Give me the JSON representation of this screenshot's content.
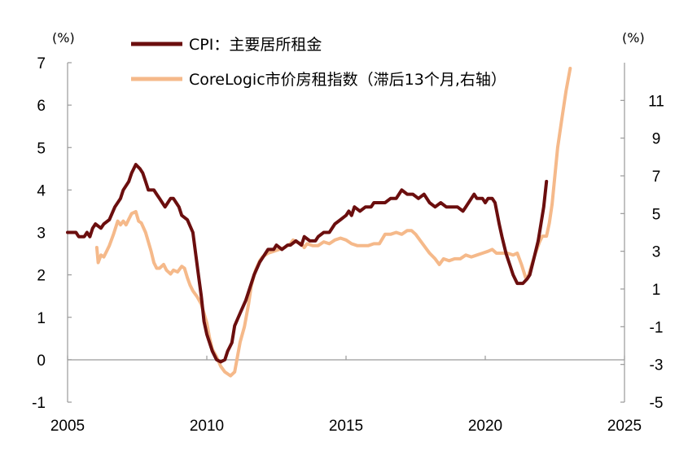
{
  "chart_data": {
    "type": "line",
    "left_axis": {
      "unit": "(%)",
      "ylim": [
        -1,
        7
      ],
      "ticks": [
        "-1",
        "0",
        "1",
        "2",
        "3",
        "4",
        "5",
        "6",
        "7"
      ]
    },
    "right_axis": {
      "unit": "(%)",
      "ylim": [
        -5,
        13
      ],
      "ticks": [
        "-5",
        "-3",
        "-1",
        "1",
        "3",
        "5",
        "7",
        "9",
        "11"
      ]
    },
    "x_axis": {
      "xlim": [
        2005,
        2025
      ],
      "ticks": [
        "2005",
        "2010",
        "2015",
        "2020",
        "2025"
      ]
    },
    "legend": {
      "placement": "top-center"
    },
    "series": [
      {
        "name": "CPI：主要居所租金",
        "axis": "left",
        "color": "#6b0e0e",
        "points": [
          [
            2005.0,
            3.0
          ],
          [
            2005.3,
            3.0
          ],
          [
            2005.4,
            2.9
          ],
          [
            2005.6,
            2.9
          ],
          [
            2005.7,
            3.0
          ],
          [
            2005.8,
            2.9
          ],
          [
            2005.9,
            3.1
          ],
          [
            2006.0,
            3.2
          ],
          [
            2006.2,
            3.1
          ],
          [
            2006.3,
            3.2
          ],
          [
            2006.5,
            3.3
          ],
          [
            2006.7,
            3.6
          ],
          [
            2006.9,
            3.8
          ],
          [
            2007.0,
            4.0
          ],
          [
            2007.2,
            4.2
          ],
          [
            2007.3,
            4.4
          ],
          [
            2007.45,
            4.6
          ],
          [
            2007.6,
            4.5
          ],
          [
            2007.7,
            4.4
          ],
          [
            2007.8,
            4.2
          ],
          [
            2007.9,
            4.0
          ],
          [
            2008.1,
            4.0
          ],
          [
            2008.2,
            3.9
          ],
          [
            2008.3,
            3.8
          ],
          [
            2008.4,
            3.7
          ],
          [
            2008.5,
            3.6
          ],
          [
            2008.6,
            3.7
          ],
          [
            2008.7,
            3.8
          ],
          [
            2008.8,
            3.8
          ],
          [
            2008.9,
            3.7
          ],
          [
            2009.0,
            3.6
          ],
          [
            2009.1,
            3.4
          ],
          [
            2009.3,
            3.3
          ],
          [
            2009.5,
            3.0
          ],
          [
            2009.6,
            2.5
          ],
          [
            2009.7,
            2.0
          ],
          [
            2009.8,
            1.5
          ],
          [
            2009.9,
            0.9
          ],
          [
            2010.0,
            0.6
          ],
          [
            2010.2,
            0.2
          ],
          [
            2010.35,
            0.0
          ],
          [
            2010.5,
            -0.05
          ],
          [
            2010.65,
            0.0
          ],
          [
            2010.75,
            0.2
          ],
          [
            2010.9,
            0.4
          ],
          [
            2011.0,
            0.8
          ],
          [
            2011.2,
            1.1
          ],
          [
            2011.4,
            1.4
          ],
          [
            2011.5,
            1.6
          ],
          [
            2011.7,
            2.0
          ],
          [
            2011.9,
            2.3
          ],
          [
            2012.0,
            2.4
          ],
          [
            2012.2,
            2.6
          ],
          [
            2012.4,
            2.6
          ],
          [
            2012.5,
            2.7
          ],
          [
            2012.7,
            2.6
          ],
          [
            2012.9,
            2.7
          ],
          [
            2013.0,
            2.7
          ],
          [
            2013.2,
            2.8
          ],
          [
            2013.4,
            2.7
          ],
          [
            2013.5,
            2.9
          ],
          [
            2013.7,
            2.8
          ],
          [
            2013.9,
            2.8
          ],
          [
            2014.0,
            2.9
          ],
          [
            2014.2,
            3.0
          ],
          [
            2014.4,
            3.0
          ],
          [
            2014.6,
            3.2
          ],
          [
            2014.8,
            3.3
          ],
          [
            2015.0,
            3.4
          ],
          [
            2015.1,
            3.5
          ],
          [
            2015.2,
            3.4
          ],
          [
            2015.3,
            3.6
          ],
          [
            2015.5,
            3.5
          ],
          [
            2015.7,
            3.6
          ],
          [
            2015.9,
            3.6
          ],
          [
            2016.0,
            3.7
          ],
          [
            2016.2,
            3.7
          ],
          [
            2016.4,
            3.7
          ],
          [
            2016.6,
            3.8
          ],
          [
            2016.8,
            3.8
          ],
          [
            2016.9,
            3.9
          ],
          [
            2017.0,
            4.0
          ],
          [
            2017.2,
            3.9
          ],
          [
            2017.4,
            3.9
          ],
          [
            2017.6,
            3.8
          ],
          [
            2017.8,
            3.9
          ],
          [
            2018.0,
            3.7
          ],
          [
            2018.2,
            3.6
          ],
          [
            2018.4,
            3.7
          ],
          [
            2018.6,
            3.6
          ],
          [
            2018.8,
            3.6
          ],
          [
            2019.0,
            3.6
          ],
          [
            2019.2,
            3.5
          ],
          [
            2019.3,
            3.6
          ],
          [
            2019.5,
            3.8
          ],
          [
            2019.6,
            3.9
          ],
          [
            2019.7,
            3.8
          ],
          [
            2019.9,
            3.8
          ],
          [
            2020.0,
            3.7
          ],
          [
            2020.1,
            3.8
          ],
          [
            2020.25,
            3.8
          ],
          [
            2020.35,
            3.7
          ],
          [
            2020.5,
            3.2
          ],
          [
            2020.6,
            2.9
          ],
          [
            2020.75,
            2.5
          ],
          [
            2020.9,
            2.2
          ],
          [
            2021.0,
            2.0
          ],
          [
            2021.15,
            1.8
          ],
          [
            2021.35,
            1.8
          ],
          [
            2021.5,
            1.9
          ],
          [
            2021.6,
            2.0
          ],
          [
            2021.75,
            2.4
          ],
          [
            2021.9,
            2.8
          ],
          [
            2022.0,
            3.2
          ],
          [
            2022.1,
            3.6
          ],
          [
            2022.2,
            4.2
          ]
        ]
      },
      {
        "name": "CoreLogic市价房租指数（滞后13个月,右轴）",
        "axis": "right",
        "color": "#f5b98a",
        "points": [
          [
            2006.05,
            3.2
          ],
          [
            2006.1,
            2.4
          ],
          [
            2006.2,
            2.8
          ],
          [
            2006.3,
            2.7
          ],
          [
            2006.4,
            3.0
          ],
          [
            2006.5,
            3.3
          ],
          [
            2006.65,
            3.9
          ],
          [
            2006.8,
            4.6
          ],
          [
            2006.9,
            4.4
          ],
          [
            2007.0,
            4.6
          ],
          [
            2007.1,
            4.4
          ],
          [
            2007.2,
            4.7
          ],
          [
            2007.3,
            5.0
          ],
          [
            2007.45,
            5.1
          ],
          [
            2007.55,
            4.6
          ],
          [
            2007.65,
            4.5
          ],
          [
            2007.8,
            4.0
          ],
          [
            2007.9,
            3.5
          ],
          [
            2008.0,
            3.0
          ],
          [
            2008.1,
            2.4
          ],
          [
            2008.2,
            2.1
          ],
          [
            2008.3,
            2.1
          ],
          [
            2008.45,
            2.3
          ],
          [
            2008.55,
            2.0
          ],
          [
            2008.7,
            1.8
          ],
          [
            2008.8,
            2.0
          ],
          [
            2008.95,
            1.9
          ],
          [
            2009.1,
            2.2
          ],
          [
            2009.2,
            2.1
          ],
          [
            2009.3,
            1.6
          ],
          [
            2009.4,
            1.2
          ],
          [
            2009.5,
            0.9
          ],
          [
            2009.65,
            0.6
          ],
          [
            2009.8,
            0.2
          ],
          [
            2009.9,
            -0.3
          ],
          [
            2010.0,
            -0.8
          ],
          [
            2010.1,
            -1.6
          ],
          [
            2010.2,
            -2.2
          ],
          [
            2010.35,
            -2.6
          ],
          [
            2010.5,
            -3.1
          ],
          [
            2010.65,
            -3.4
          ],
          [
            2010.85,
            -3.6
          ],
          [
            2011.0,
            -3.4
          ],
          [
            2011.1,
            -2.6
          ],
          [
            2011.2,
            -1.8
          ],
          [
            2011.35,
            -1.0
          ],
          [
            2011.5,
            0.2
          ],
          [
            2011.6,
            1.2
          ],
          [
            2011.75,
            2.0
          ],
          [
            2011.9,
            2.5
          ],
          [
            2012.0,
            2.7
          ],
          [
            2012.2,
            2.9
          ],
          [
            2012.4,
            3.0
          ],
          [
            2012.6,
            3.1
          ],
          [
            2012.8,
            3.2
          ],
          [
            2013.0,
            3.4
          ],
          [
            2013.1,
            3.6
          ],
          [
            2013.2,
            3.5
          ],
          [
            2013.4,
            3.4
          ],
          [
            2013.5,
            3.2
          ],
          [
            2013.6,
            3.4
          ],
          [
            2013.8,
            3.3
          ],
          [
            2014.0,
            3.3
          ],
          [
            2014.2,
            3.5
          ],
          [
            2014.4,
            3.4
          ],
          [
            2014.6,
            3.6
          ],
          [
            2014.8,
            3.7
          ],
          [
            2015.0,
            3.6
          ],
          [
            2015.2,
            3.4
          ],
          [
            2015.4,
            3.3
          ],
          [
            2015.6,
            3.3
          ],
          [
            2015.8,
            3.3
          ],
          [
            2016.0,
            3.4
          ],
          [
            2016.2,
            3.4
          ],
          [
            2016.4,
            3.9
          ],
          [
            2016.6,
            3.9
          ],
          [
            2016.8,
            4.0
          ],
          [
            2017.0,
            3.9
          ],
          [
            2017.2,
            4.1
          ],
          [
            2017.35,
            4.1
          ],
          [
            2017.5,
            3.9
          ],
          [
            2017.7,
            3.5
          ],
          [
            2017.9,
            3.1
          ],
          [
            2018.0,
            2.9
          ],
          [
            2018.2,
            2.6
          ],
          [
            2018.35,
            2.3
          ],
          [
            2018.5,
            2.6
          ],
          [
            2018.7,
            2.5
          ],
          [
            2018.9,
            2.6
          ],
          [
            2019.1,
            2.6
          ],
          [
            2019.3,
            2.8
          ],
          [
            2019.5,
            2.7
          ],
          [
            2019.7,
            2.8
          ],
          [
            2019.9,
            2.9
          ],
          [
            2020.1,
            3.0
          ],
          [
            2020.25,
            3.1
          ],
          [
            2020.4,
            2.9
          ],
          [
            2020.6,
            2.9
          ],
          [
            2020.8,
            2.9
          ],
          [
            2021.0,
            2.8
          ],
          [
            2021.15,
            2.9
          ],
          [
            2021.3,
            2.3
          ],
          [
            2021.45,
            1.6
          ],
          [
            2021.55,
            1.7
          ],
          [
            2021.65,
            2.2
          ],
          [
            2021.8,
            2.9
          ],
          [
            2021.95,
            3.5
          ],
          [
            2022.05,
            3.8
          ],
          [
            2022.2,
            3.8
          ],
          [
            2022.3,
            4.5
          ],
          [
            2022.4,
            5.5
          ],
          [
            2022.5,
            7.0
          ],
          [
            2022.6,
            8.5
          ],
          [
            2022.75,
            10.0
          ],
          [
            2022.9,
            11.5
          ],
          [
            2023.05,
            12.7
          ]
        ]
      }
    ]
  }
}
